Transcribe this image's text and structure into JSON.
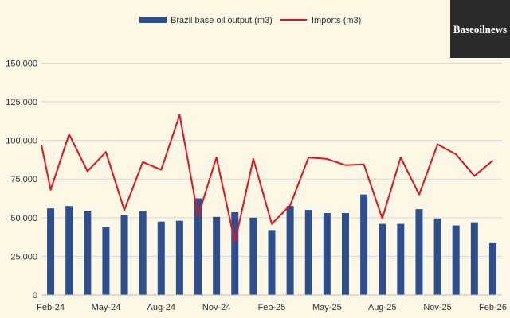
{
  "brand": {
    "logo_text": "Baseoilnews"
  },
  "colors": {
    "bar": "#2e4f8f",
    "line": "#e3121b",
    "grid": "#d9d9d9",
    "background": "#fdf7e6"
  },
  "chart_data": {
    "type": "bar",
    "categories": [
      "Feb-24",
      "Mar-24",
      "Apr-24",
      "May-24",
      "Jun-24",
      "Jul-24",
      "Aug-24",
      "Sep-24",
      "Oct-24",
      "Nov-24",
      "Dec-24",
      "Jan-25",
      "Feb-25",
      "Mar-25",
      "Apr-25",
      "May-25",
      "Jun-25",
      "Jul-25",
      "Aug-25",
      "Sep-25",
      "Oct-25",
      "Nov-25",
      "Dec-25",
      "Jan-26",
      "Feb-26"
    ],
    "x_tick_labels": [
      "Feb-24",
      "May-24",
      "Aug-24",
      "Nov-24",
      "Feb-25",
      "May-25",
      "Aug-25",
      "Nov-25",
      "Feb-26"
    ],
    "y_ticks": [
      0,
      25000,
      50000,
      75000,
      100000,
      125000,
      150000
    ],
    "y_tick_labels": [
      "0",
      "25,000",
      "50,000",
      "75,000",
      "100,000",
      "125,000",
      "150,000"
    ],
    "ylim": [
      0,
      160000
    ],
    "grid": true,
    "legend_position": "top",
    "series": [
      {
        "name": "Brazil base oil output (m3)",
        "type": "bar",
        "values": [
          56000,
          57500,
          54500,
          44000,
          51500,
          54000,
          47500,
          48000,
          62500,
          50500,
          53500,
          50000,
          42000,
          57500,
          55000,
          53000,
          53000,
          65000,
          46000,
          46000,
          55500,
          49500,
          45000,
          47000,
          33500
        ]
      },
      {
        "name": "Imports (m3)",
        "type": "line",
        "points": [
          {
            "x": 0,
            "y": 97000
          },
          {
            "x": 0.5,
            "y": 68000
          },
          {
            "x": 1.5,
            "y": 104000
          },
          {
            "x": 2.5,
            "y": 80000
          },
          {
            "x": 3.5,
            "y": 92500
          },
          {
            "x": 4.5,
            "y": 55000
          },
          {
            "x": 5.5,
            "y": 86000
          },
          {
            "x": 6.5,
            "y": 81000
          },
          {
            "x": 7.5,
            "y": 116500
          },
          {
            "x": 8.5,
            "y": 51000
          },
          {
            "x": 9.5,
            "y": 89000
          },
          {
            "x": 10.5,
            "y": 34000
          },
          {
            "x": 11.5,
            "y": 88000
          },
          {
            "x": 12.5,
            "y": 46000
          },
          {
            "x": 13.5,
            "y": 58000
          },
          {
            "x": 14.5,
            "y": 89000
          },
          {
            "x": 15.5,
            "y": 88000
          },
          {
            "x": 16.5,
            "y": 84000
          },
          {
            "x": 17.5,
            "y": 84500
          },
          {
            "x": 18.5,
            "y": 49500
          },
          {
            "x": 19.5,
            "y": 89000
          },
          {
            "x": 20.5,
            "y": 65000
          },
          {
            "x": 21.5,
            "y": 97500
          },
          {
            "x": 22.5,
            "y": 91000
          },
          {
            "x": 23.5,
            "y": 77000
          },
          {
            "x": 24.5,
            "y": 87000
          }
        ]
      }
    ]
  }
}
